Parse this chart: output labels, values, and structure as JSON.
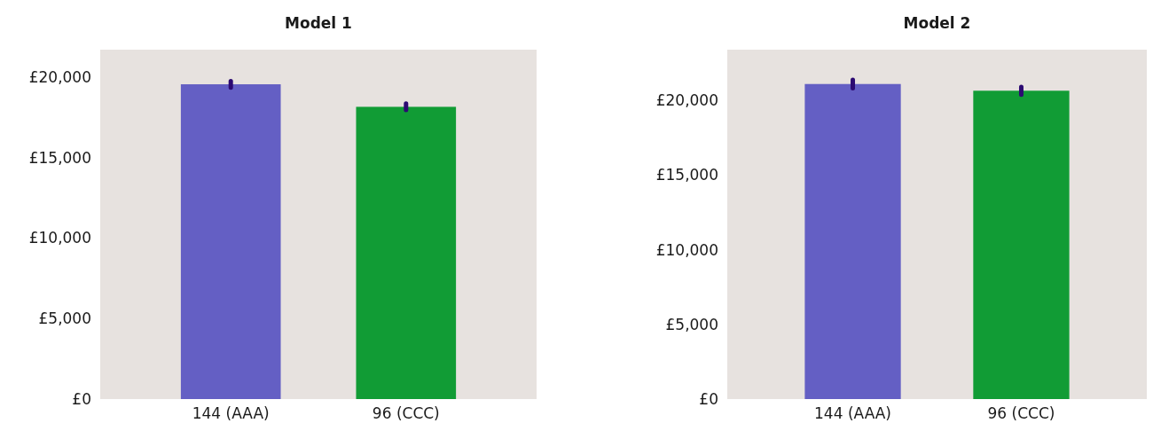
{
  "chart_data": [
    {
      "type": "bar",
      "title": "Model 1",
      "categories": [
        "144 (AAA)",
        "96 (CCC)"
      ],
      "values": [
        19550,
        18150
      ],
      "colors": [
        "#645fc4",
        "#119c35"
      ],
      "errors": [
        200,
        200
      ],
      "ylim": [
        0,
        21700
      ],
      "yticks": [
        {
          "value": 0,
          "label": "£0"
        },
        {
          "value": 5000,
          "label": "£5,000"
        },
        {
          "value": 10000,
          "label": "£10,000"
        },
        {
          "value": 15000,
          "label": "£15,000"
        },
        {
          "value": 20000,
          "label": "£20,000"
        }
      ],
      "grid": false
    },
    {
      "type": "bar",
      "title": "Model 2",
      "categories": [
        "144 (AAA)",
        "96 (CCC)"
      ],
      "values": [
        21100,
        20650
      ],
      "colors": [
        "#645fc4",
        "#119c35"
      ],
      "errors": [
        280,
        260
      ],
      "ylim": [
        0,
        23400
      ],
      "yticks": [
        {
          "value": 0,
          "label": "£0"
        },
        {
          "value": 5000,
          "label": "£5,000"
        },
        {
          "value": 10000,
          "label": "£10,000"
        },
        {
          "value": 15000,
          "label": "£15,000"
        },
        {
          "value": 20000,
          "label": "£20,000"
        }
      ],
      "grid": false
    }
  ]
}
